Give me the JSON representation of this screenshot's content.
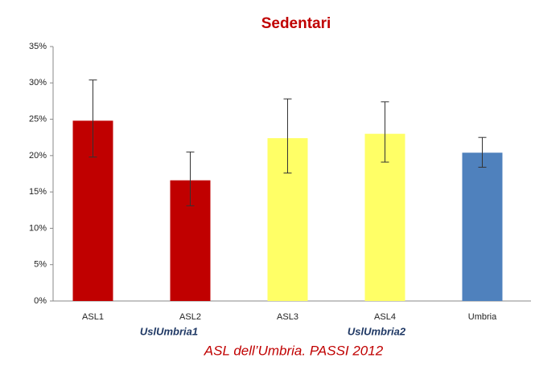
{
  "chart_data": {
    "type": "bar",
    "title": "Sedentari",
    "categories": [
      "ASL1",
      "ASL2",
      "ASL3",
      "ASL4",
      "Umbria"
    ],
    "values": [
      24.8,
      16.6,
      22.4,
      23.0,
      20.4
    ],
    "lower": [
      19.8,
      13.1,
      17.6,
      19.1,
      18.4
    ],
    "upper": [
      30.4,
      20.5,
      27.8,
      27.4,
      22.5
    ],
    "colors": [
      "#c00000",
      "#c00000",
      "#ffff66",
      "#ffff66",
      "#4f81bd"
    ],
    "ylim": [
      0,
      35
    ],
    "yticks": [
      {
        "value": 0,
        "label": "0%"
      },
      {
        "value": 5,
        "label": "5%"
      },
      {
        "value": 10,
        "label": "10%"
      },
      {
        "value": 15,
        "label": "15%"
      },
      {
        "value": 20,
        "label": "20%"
      },
      {
        "value": 25,
        "label": "25%"
      },
      {
        "value": 30,
        "label": "30%"
      },
      {
        "value": 35,
        "label": "35%"
      }
    ],
    "grid": false,
    "groups": [
      "UslUmbria1",
      "UslUmbria2"
    ],
    "footer": "ASL dell’Umbria. PASSI 2012"
  }
}
